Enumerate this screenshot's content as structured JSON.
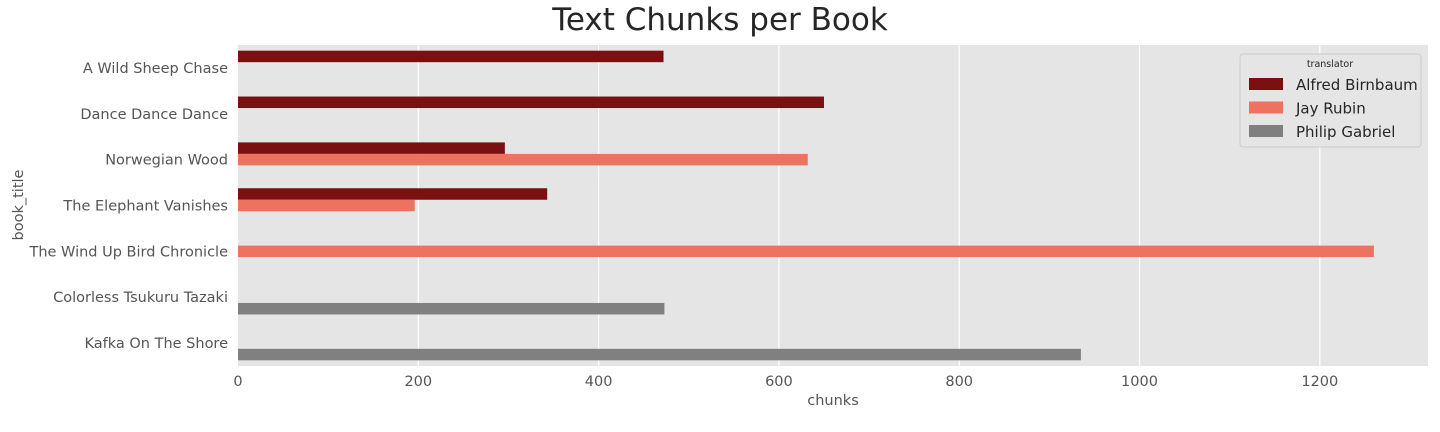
{
  "chart_data": {
    "type": "bar",
    "orientation": "horizontal",
    "title": "Text Chunks per Book",
    "xlabel": "chunks",
    "ylabel": "book_title",
    "xlim": [
      0,
      1320
    ],
    "xticks": [
      "0",
      "200",
      "400",
      "600",
      "800",
      "1000",
      "1200"
    ],
    "grid": true,
    "legend_title": "translator",
    "legend_position": "top-right",
    "categories": [
      "A Wild Sheep Chase",
      "Dance Dance Dance",
      "Norwegian Wood",
      "The Elephant Vanishes",
      "The Wind Up Bird Chronicle",
      "Colorless Tsukuru Tazaki",
      "Kafka On The Shore"
    ],
    "series": [
      {
        "name": "Alfred Birnbaum",
        "color": "#7a1010",
        "values": [
          472,
          650,
          296,
          343,
          null,
          null,
          null
        ]
      },
      {
        "name": "Jay Rubin",
        "color": "#eb7360",
        "values": [
          null,
          null,
          632,
          196,
          1260,
          null,
          null
        ]
      },
      {
        "name": "Philip Gabriel",
        "color": "#808080",
        "values": [
          null,
          null,
          null,
          null,
          null,
          473,
          935
        ]
      }
    ]
  }
}
